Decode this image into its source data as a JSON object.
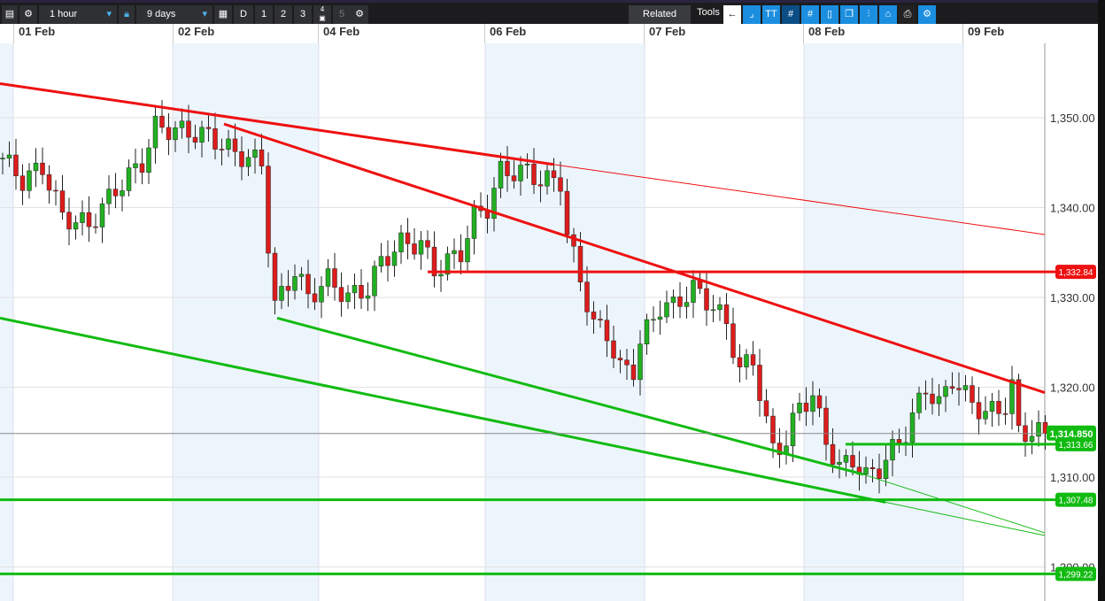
{
  "toolbar": {
    "interval": "1 hour",
    "range": "9 days",
    "d": "D",
    "p1": "1",
    "p2": "2",
    "p3": "3",
    "p4": "4",
    "p5": "5",
    "related": "Related",
    "tools": "Tools",
    "tt": "TT"
  },
  "dates": [
    "01 Feb",
    "02 Feb",
    "04 Feb",
    "06 Feb",
    "07 Feb",
    "08 Feb",
    "09 Feb"
  ],
  "price_axis": {
    "ticks": [
      "1,350.00",
      "1,340.00",
      "1,330.00",
      "1,320.00",
      "1,310.00",
      "1,300.00"
    ],
    "values": [
      1350,
      1340,
      1330,
      1320,
      1310,
      1300
    ]
  },
  "colors": {
    "up": "#22b022",
    "down": "#dd1c1c",
    "resistance": "#ee1111",
    "support": "#11bb11"
  },
  "current_price": {
    "value": 1314.85,
    "label": "1,314.850"
  },
  "levels": [
    {
      "label": "1,332.84",
      "value": 1332.84,
      "color": "red"
    },
    {
      "label": "1,313.66",
      "value": 1313.66,
      "color": "green"
    },
    {
      "label": "1,307.48",
      "value": 1307.48,
      "color": "green"
    },
    {
      "label": "1,299.22",
      "value": 1299.22,
      "color": "green"
    }
  ],
  "chart_data": {
    "type": "candlestick",
    "interval": "1 hour",
    "price_path": [
      [
        0,
        1345.5
      ],
      [
        3,
        1343
      ],
      [
        6,
        1344.5
      ],
      [
        9,
        1339
      ],
      [
        13,
        1338
      ],
      [
        17,
        1342
      ],
      [
        21,
        1345
      ],
      [
        23,
        1349
      ],
      [
        27,
        1348.5
      ],
      [
        31,
        1348
      ],
      [
        35,
        1346
      ],
      [
        39,
        1345
      ],
      [
        40,
        1336
      ],
      [
        41,
        1329
      ],
      [
        44,
        1333
      ],
      [
        46,
        1330
      ],
      [
        49,
        1332
      ],
      [
        52,
        1330
      ],
      [
        55,
        1331
      ],
      [
        57,
        1334
      ],
      [
        60,
        1336
      ],
      [
        63,
        1336
      ],
      [
        65,
        1333
      ],
      [
        67,
        1334
      ],
      [
        69,
        1335
      ],
      [
        71,
        1339
      ],
      [
        73,
        1340
      ],
      [
        75,
        1344
      ],
      [
        79,
        1344
      ],
      [
        81,
        1343
      ],
      [
        84,
        1343
      ],
      [
        85,
        1337
      ],
      [
        87,
        1332
      ],
      [
        89,
        1327
      ],
      [
        91,
        1326
      ],
      [
        93,
        1322
      ],
      [
        95,
        1322
      ],
      [
        96,
        1325
      ],
      [
        99,
        1329
      ],
      [
        101,
        1329
      ],
      [
        104,
        1331
      ],
      [
        107,
        1329
      ],
      [
        109,
        1327
      ],
      [
        111,
        1322
      ],
      [
        113,
        1323
      ],
      [
        115,
        1316
      ],
      [
        116,
        1313
      ],
      [
        118,
        1314
      ],
      [
        120,
        1318
      ],
      [
        122,
        1319
      ],
      [
        124,
        1314
      ],
      [
        126,
        1311
      ],
      [
        128,
        1312
      ],
      [
        130,
        1310
      ],
      [
        132,
        1311
      ],
      [
        134,
        1313
      ],
      [
        136,
        1315
      ],
      [
        139,
        1320
      ],
      [
        141,
        1318
      ],
      [
        143,
        1321
      ],
      [
        145,
        1319
      ],
      [
        148,
        1317
      ],
      [
        151,
        1318
      ],
      [
        152,
        1320
      ],
      [
        153,
        1315
      ],
      [
        155,
        1315
      ],
      [
        157,
        1314.85
      ]
    ]
  }
}
